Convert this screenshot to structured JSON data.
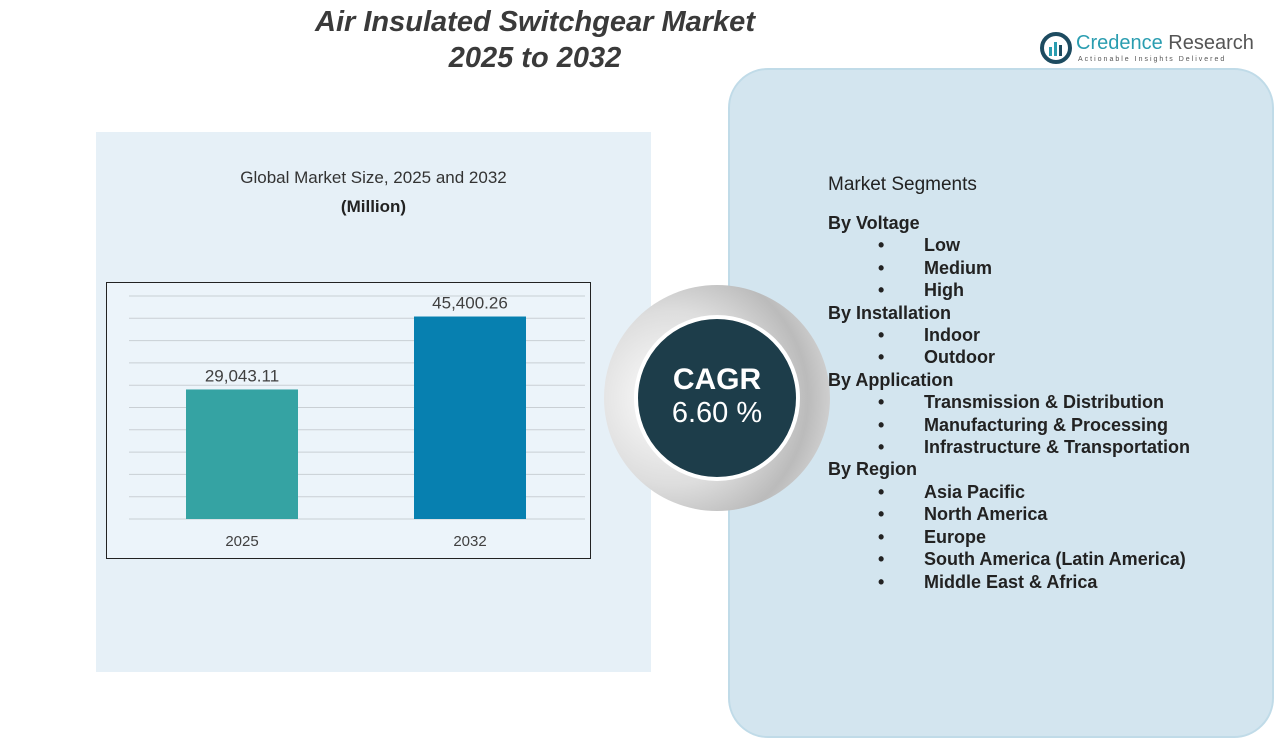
{
  "title_line1": "Air Insulated Switchgear Market",
  "title_line2": "2025 to 2032",
  "logo": {
    "name_a": "Credence",
    "name_b": " Research",
    "tagline": "Actionable Insights Delivered"
  },
  "chart_data": {
    "type": "bar",
    "title": "Global Market Size, 2025 and 2032",
    "subtitle": "(Million)",
    "categories": [
      "2025",
      "2032"
    ],
    "values": [
      29043.11,
      45400.26
    ],
    "labels": [
      "29,043.11",
      "45,400.26"
    ],
    "colors": [
      "#35a3a3",
      "#0780b0"
    ],
    "ylim": [
      0,
      50000
    ],
    "grid": true
  },
  "cagr": {
    "label": "CAGR",
    "value": "6.60 %"
  },
  "segments": {
    "heading": "Market Segments",
    "groups": [
      {
        "name": "By Voltage",
        "items": [
          "Low",
          "Medium",
          "High"
        ]
      },
      {
        "name": "By Installation",
        "items": [
          "Indoor",
          "Outdoor"
        ]
      },
      {
        "name": "By Application",
        "items": [
          "Transmission & Distribution",
          "Manufacturing & Processing",
          "Infrastructure & Transportation"
        ]
      },
      {
        "name": "By Region",
        "items": [
          "Asia Pacific",
          "North America",
          "Europe",
          "South America (Latin America)",
          "Middle East & Africa"
        ]
      }
    ]
  }
}
